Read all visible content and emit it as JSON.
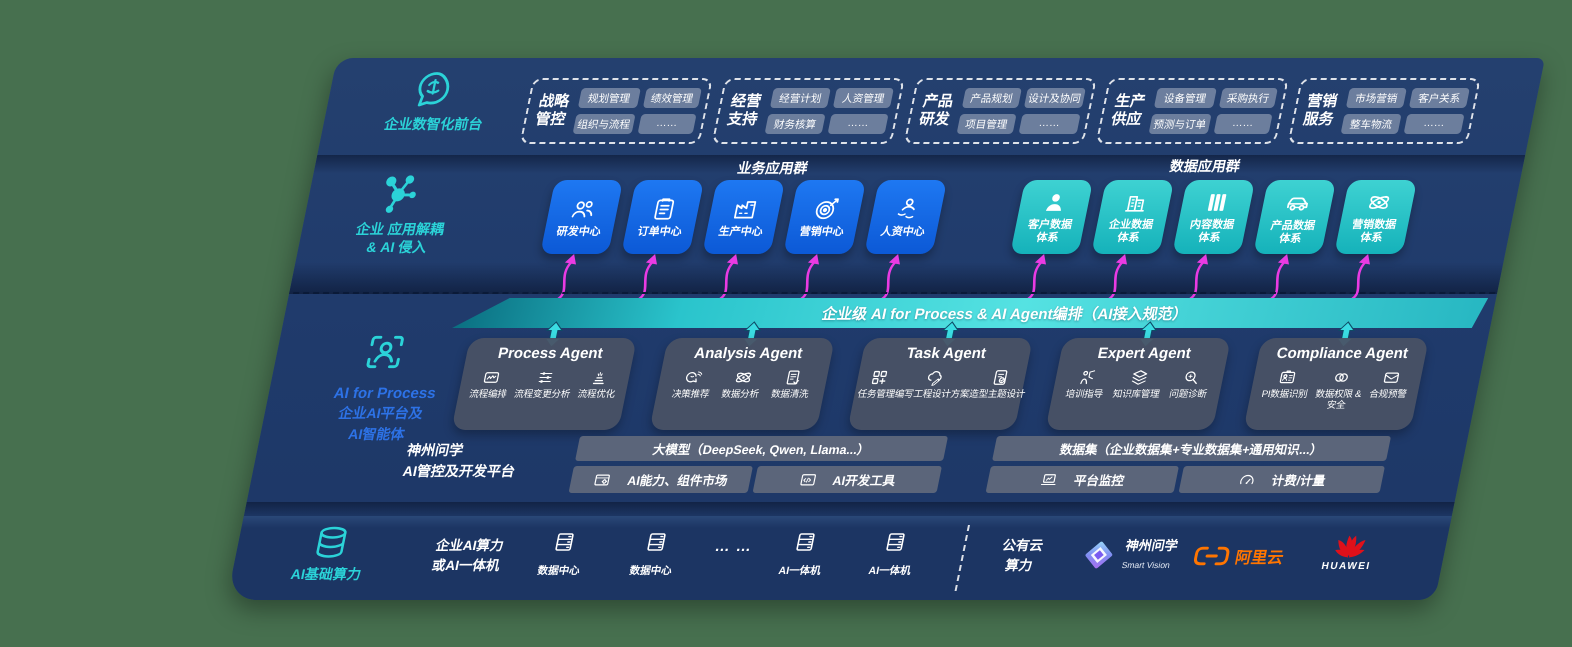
{
  "colors": {
    "page_bg": "#47704F",
    "panel_navy": "#1F3A6B",
    "accent_teal": "#2BD3D8",
    "accent_blue": "#1268E0",
    "magenta_arrow": "#E93BE3",
    "bus_teal": "#3ACFD6",
    "agent_gray": "#4A5265",
    "aliyun_orange": "#FF7500",
    "huawei_red": "#E0101A"
  },
  "left_rail": {
    "front_office_label": "企业数智化前台",
    "decouple_label_l1": "企业 应用解耦",
    "decouple_label_l2": "& AI 侵入",
    "ai_label_l1": "AI for Process",
    "ai_label_l2": "企业AI平台及",
    "ai_label_l3": "AI智能体",
    "infra_label": "AI基础算力"
  },
  "front_office": {
    "groups": [
      {
        "name_l1": "战略",
        "name_l2": "管控",
        "tags": [
          "规划管理",
          "绩效管理",
          "组织与流程",
          "……"
        ]
      },
      {
        "name_l1": "经营",
        "name_l2": "支持",
        "tags": [
          "经营计划",
          "人资管理",
          "财务核算",
          "……"
        ]
      },
      {
        "name_l1": "产品",
        "name_l2": "研发",
        "tags": [
          "产品规划",
          "设计及协同",
          "项目管理",
          "……"
        ]
      },
      {
        "name_l1": "生产",
        "name_l2": "供应",
        "tags": [
          "设备管理",
          "采购执行",
          "预测与订单",
          "……"
        ]
      },
      {
        "name_l1": "营销",
        "name_l2": "服务",
        "tags": [
          "市场营销",
          "客户关系",
          "整车物流",
          "……"
        ]
      }
    ]
  },
  "apps": {
    "business_title": "业务应用群",
    "data_title": "数据应用群",
    "business": [
      {
        "label": "研发中心",
        "icon": "team-icon"
      },
      {
        "label": "订单中心",
        "icon": "clipboard-icon"
      },
      {
        "label": "生产中心",
        "icon": "factory-icon"
      },
      {
        "label": "营销中心",
        "icon": "target-icon"
      },
      {
        "label": "人资中心",
        "icon": "person-motion-icon"
      }
    ],
    "data": [
      {
        "l1": "客户数据",
        "l2": "体系",
        "icon": "person-icon"
      },
      {
        "l1": "企业数据",
        "l2": "体系",
        "icon": "building-icon"
      },
      {
        "l1": "内容数据",
        "l2": "体系",
        "icon": "books-icon"
      },
      {
        "l1": "产品数据",
        "l2": "体系",
        "icon": "car-icon"
      },
      {
        "l1": "营销数据",
        "l2": "体系",
        "icon": "atom-icon"
      }
    ]
  },
  "bus": {
    "title": "企业级 AI for Process & AI Agent编排（AI接入规范）"
  },
  "agents": [
    {
      "title": "Process Agent",
      "items": [
        {
          "label": "流程编排",
          "icon": "wave-box-icon"
        },
        {
          "label": "流程变更分析",
          "icon": "sliders-icon"
        },
        {
          "label": "流程优化",
          "icon": "stack-sparkle-icon"
        }
      ]
    },
    {
      "title": "Analysis Agent",
      "items": [
        {
          "label": "决策推荐",
          "icon": "think-head-icon"
        },
        {
          "label": "数据分析",
          "icon": "atom-icon"
        },
        {
          "label": "数据清洗",
          "icon": "doc-clean-icon"
        }
      ]
    },
    {
      "title": "Task Agent",
      "items": [
        {
          "label": "任务管理",
          "icon": "task-grid-icon"
        },
        {
          "label": "编写工程设计方案",
          "icon": "cloud-pen-icon"
        },
        {
          "label": "造型主题设计",
          "icon": "tablet-check-icon"
        }
      ]
    },
    {
      "title": "Expert Agent",
      "items": [
        {
          "label": "培训指导",
          "icon": "training-icon"
        },
        {
          "label": "知识库管理",
          "icon": "layers-icon"
        },
        {
          "label": "问题诊断",
          "icon": "diagnose-icon"
        }
      ]
    },
    {
      "title": "Compliance Agent",
      "items": [
        {
          "label": "PI数据识别",
          "icon": "id-card-icon"
        },
        {
          "label": "数据权限 &\n安全",
          "icon": "link-circles-icon"
        },
        {
          "label": "合规预警",
          "icon": "alert-mail-icon"
        }
      ]
    }
  ],
  "platform": {
    "label_l1": "神州问学",
    "label_l2": "AI管控及开发平台",
    "model_bar": "大模型（DeepSeek, Qwen, Llama...）",
    "ability": "AI能力、组件市场",
    "devtools": "AI开发工具",
    "dataset_bar": "数据集（企业数据集+专业数据集+通用知识...）",
    "monitor": "平台监控",
    "billing": "计费/计量"
  },
  "infra": {
    "compute_l1": "企业AI算力",
    "compute_l2": "或AI一体机",
    "nodes": [
      {
        "label": "数据中心",
        "icon": "server-icon"
      },
      {
        "label": "数据中心",
        "icon": "server-icon"
      },
      {
        "label": "AI一体机",
        "icon": "server-icon"
      },
      {
        "label": "AI一体机",
        "icon": "server-icon"
      }
    ],
    "dots": "… …",
    "cloud_l1": "公有云",
    "cloud_l2": "算力",
    "vendor_szwx_name": "神州问学",
    "vendor_szwx_sub": "Smart Vision",
    "vendor_aliyun": "阿里云",
    "vendor_huawei": "HUAWEI"
  }
}
